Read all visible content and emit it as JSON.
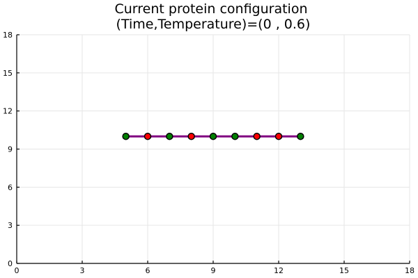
{
  "chart_data": {
    "type": "scatter",
    "title": "Current protein configuration",
    "subtitle": "(Time,Temperature)=(0 , 0.6)",
    "xlabel": "",
    "ylabel": "",
    "xlim": [
      0,
      18
    ],
    "ylim": [
      0,
      18
    ],
    "xticks": [
      0,
      3,
      6,
      9,
      12,
      15,
      18
    ],
    "yticks": [
      0,
      3,
      6,
      9,
      12,
      15,
      18
    ],
    "grid": true,
    "legend": "none",
    "chain_color": "#800080",
    "points": [
      {
        "x": 5,
        "y": 10,
        "color": "#008000"
      },
      {
        "x": 6,
        "y": 10,
        "color": "#ff0000"
      },
      {
        "x": 7,
        "y": 10,
        "color": "#008000"
      },
      {
        "x": 8,
        "y": 10,
        "color": "#ff0000"
      },
      {
        "x": 9,
        "y": 10,
        "color": "#008000"
      },
      {
        "x": 10,
        "y": 10,
        "color": "#008000"
      },
      {
        "x": 11,
        "y": 10,
        "color": "#ff0000"
      },
      {
        "x": 12,
        "y": 10,
        "color": "#ff0000"
      },
      {
        "x": 13,
        "y": 10,
        "color": "#008000"
      }
    ]
  }
}
